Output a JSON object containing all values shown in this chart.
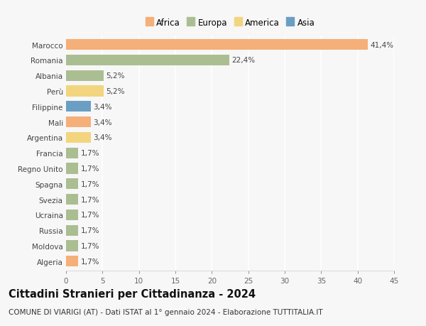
{
  "countries": [
    "Marocco",
    "Romania",
    "Albania",
    "Perù",
    "Filippine",
    "Mali",
    "Argentina",
    "Francia",
    "Regno Unito",
    "Spagna",
    "Svezia",
    "Ucraina",
    "Russia",
    "Moldova",
    "Algeria"
  ],
  "values": [
    41.4,
    22.4,
    5.2,
    5.2,
    3.4,
    3.4,
    3.4,
    1.7,
    1.7,
    1.7,
    1.7,
    1.7,
    1.7,
    1.7,
    1.7
  ],
  "labels": [
    "41,4%",
    "22,4%",
    "5,2%",
    "5,2%",
    "3,4%",
    "3,4%",
    "3,4%",
    "1,7%",
    "1,7%",
    "1,7%",
    "1,7%",
    "1,7%",
    "1,7%",
    "1,7%",
    "1,7%"
  ],
  "continents": [
    "Africa",
    "Europa",
    "Europa",
    "America",
    "Asia",
    "Africa",
    "America",
    "Europa",
    "Europa",
    "Europa",
    "Europa",
    "Europa",
    "Europa",
    "Europa",
    "Africa"
  ],
  "colors": {
    "Africa": "#F5AF78",
    "Europa": "#ABBE91",
    "America": "#F2D57E",
    "Asia": "#6B9EC3"
  },
  "legend_order": [
    "Africa",
    "Europa",
    "America",
    "Asia"
  ],
  "title": "Cittadini Stranieri per Cittadinanza - 2024",
  "subtitle": "COMUNE DI VIARIGI (AT) - Dati ISTAT al 1° gennaio 2024 - Elaborazione TUTTITALIA.IT",
  "xlim": [
    0,
    45
  ],
  "xticks": [
    0,
    5,
    10,
    15,
    20,
    25,
    30,
    35,
    40,
    45
  ],
  "background_color": "#f7f7f7",
  "bar_height": 0.7,
  "title_fontsize": 10.5,
  "subtitle_fontsize": 7.5,
  "tick_fontsize": 7.5,
  "label_fontsize": 7.5,
  "legend_fontsize": 8.5
}
